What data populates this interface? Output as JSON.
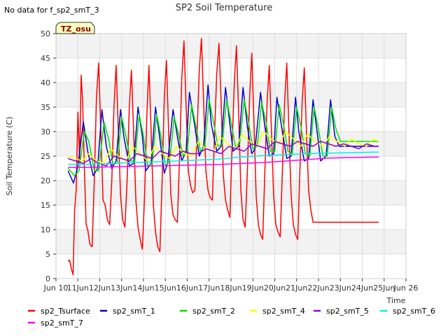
{
  "chart_data": {
    "type": "line",
    "title": "SP2 Soil Temperature",
    "top_left_note": "No data for f_sp2_smT_3",
    "badge": "TZ_osu",
    "xlabel": "Time",
    "ylabel": "Soil Temperature (C)",
    "xlim": [
      10.0,
      26.0
    ],
    "ylim": [
      0,
      50
    ],
    "x_ticks": [
      {
        "v": 10,
        "label": "Jun 10"
      },
      {
        "v": 11,
        "label": "11Jun"
      },
      {
        "v": 12,
        "label": "12Jun"
      },
      {
        "v": 13,
        "label": "13Jun"
      },
      {
        "v": 14,
        "label": "14Jun"
      },
      {
        "v": 15,
        "label": "15Jun"
      },
      {
        "v": 16,
        "label": "16Jun"
      },
      {
        "v": 17,
        "label": "17Jun"
      },
      {
        "v": 18,
        "label": "18Jun"
      },
      {
        "v": 19,
        "label": "19Jun"
      },
      {
        "v": 20,
        "label": "20Jun"
      },
      {
        "v": 21,
        "label": "21Jun"
      },
      {
        "v": 22,
        "label": "22Jun"
      },
      {
        "v": 23,
        "label": "23Jun"
      },
      {
        "v": 24,
        "label": "24Jun"
      },
      {
        "v": 25,
        "label": "25Jun"
      },
      {
        "v": 26,
        "label": "Jun 26"
      }
    ],
    "y_ticks": [
      0,
      5,
      10,
      15,
      20,
      25,
      30,
      35,
      40,
      45,
      50
    ],
    "grid": true,
    "banded_background": true,
    "legend_position": "bottom",
    "series": [
      {
        "name": "sp2_Tsurface",
        "color": "#ff0000",
        "width": 1.5,
        "x": [
          10.55,
          10.62,
          10.7,
          10.78,
          10.85,
          10.92,
          11.0,
          11.08,
          11.15,
          11.22,
          11.3,
          11.38,
          11.45,
          11.55,
          11.65,
          11.75,
          11.85,
          11.95,
          12.05,
          12.15,
          12.25,
          12.35,
          12.45,
          12.55,
          12.65,
          12.75,
          12.85,
          12.95,
          13.05,
          13.15,
          13.25,
          13.35,
          13.45,
          13.55,
          13.65,
          13.75,
          13.85,
          13.95,
          14.05,
          14.15,
          14.25,
          14.35,
          14.45,
          14.55,
          14.65,
          14.75,
          14.85,
          14.95,
          15.05,
          15.15,
          15.25,
          15.35,
          15.45,
          15.55,
          15.65,
          15.75,
          15.85,
          15.95,
          16.05,
          16.15,
          16.25,
          16.35,
          16.45,
          16.55,
          16.65,
          16.75,
          16.85,
          16.95,
          17.05,
          17.15,
          17.25,
          17.35,
          17.45,
          17.55,
          17.65,
          17.75,
          17.85,
          17.95,
          18.05,
          18.15,
          18.25,
          18.35,
          18.45,
          18.55,
          18.65,
          18.75,
          18.85,
          18.95,
          19.05,
          19.15,
          19.25,
          19.35,
          19.45,
          19.55,
          19.65,
          19.75,
          19.85,
          19.95,
          20.05,
          20.15,
          20.25,
          20.35,
          20.45,
          20.55,
          20.65,
          20.75,
          20.85,
          20.95,
          21.05,
          21.15,
          21.25,
          21.35,
          21.45,
          21.55,
          21.65,
          21.75,
          21.85,
          21.95,
          22.05,
          22.15,
          22.25,
          22.35,
          22.45,
          22.55,
          22.65,
          22.75,
          22.85,
          22.95,
          23.05,
          23.15,
          23.25,
          23.35,
          23.45,
          23.55,
          23.65,
          23.75,
          23.85,
          23.95,
          24.05,
          24.15,
          24.25,
          24.35,
          24.45,
          24.55,
          24.65,
          24.75
        ],
        "y": [
          3.5,
          3.8,
          2.0,
          0.8,
          14.0,
          18.0,
          34.0,
          24.0,
          41.5,
          36.0,
          22.0,
          11.0,
          10.0,
          7.0,
          6.5,
          20.0,
          37.0,
          44.0,
          30.0,
          16.0,
          15.0,
          12.0,
          11.0,
          20.0,
          35.0,
          43.5,
          30.0,
          17.0,
          12.0,
          10.5,
          20.0,
          35.0,
          42.5,
          30.0,
          16.0,
          10.5,
          8.0,
          6.0,
          17.0,
          33.0,
          43.5,
          30.0,
          15.0,
          9.5,
          6.5,
          5.5,
          20.0,
          37.0,
          44.5,
          30.0,
          17.0,
          13.0,
          12.0,
          11.5,
          25.0,
          41.0,
          48.5,
          35.0,
          22.0,
          19.0,
          17.5,
          18.0,
          30.0,
          42.5,
          49.0,
          36.0,
          22.0,
          18.0,
          16.5,
          16.0,
          30.0,
          42.0,
          48.0,
          36.0,
          21.0,
          16.0,
          14.0,
          12.5,
          27.0,
          40.0,
          47.5,
          34.0,
          18.0,
          12.0,
          10.5,
          22.0,
          37.0,
          46.0,
          32.0,
          17.0,
          11.0,
          9.0,
          8.0,
          22.0,
          36.0,
          43.5,
          30.0,
          17.0,
          11.0,
          9.5,
          8.5,
          22.0,
          36.0,
          44.0,
          30.0,
          17.0,
          11.0,
          9.0,
          8.0,
          22.0,
          36.0,
          43.0,
          30.0,
          18.0,
          14.0,
          11.5,
          11.5,
          11.5,
          11.5,
          11.5,
          11.5,
          11.5,
          11.5,
          11.5,
          11.5,
          11.5,
          11.5,
          11.5,
          11.5,
          11.5,
          11.5,
          11.5,
          11.5,
          11.5,
          11.5,
          11.5,
          11.5,
          11.5,
          11.5,
          11.5,
          11.5,
          11.5,
          11.5,
          11.5,
          11.5,
          11.5
        ]
      },
      {
        "name": "sp2_smT_1",
        "color": "#0000cc",
        "width": 1.5,
        "x": [
          10.55,
          10.8,
          11.0,
          11.25,
          11.45,
          11.7,
          11.9,
          12.1,
          12.3,
          12.55,
          12.75,
          12.95,
          13.1,
          13.35,
          13.55,
          13.75,
          13.95,
          14.1,
          14.35,
          14.55,
          14.75,
          14.95,
          15.1,
          15.35,
          15.55,
          15.75,
          15.95,
          16.1,
          16.35,
          16.55,
          16.75,
          16.95,
          17.1,
          17.35,
          17.55,
          17.75,
          17.95,
          18.1,
          18.35,
          18.55,
          18.75,
          18.95,
          19.1,
          19.35,
          19.55,
          19.75,
          19.95,
          20.1,
          20.35,
          20.55,
          20.75,
          20.95,
          21.1,
          21.35,
          21.55,
          21.75,
          21.95,
          22.1,
          22.35,
          22.55,
          22.75,
          22.95,
          23.1,
          23.35,
          23.55,
          23.75,
          23.95,
          24.1,
          24.35,
          24.55,
          24.75
        ],
        "y": [
          22.0,
          19.5,
          23.0,
          32.0,
          26.0,
          21.0,
          22.5,
          34.5,
          27.0,
          22.5,
          24.0,
          34.5,
          29.0,
          23.0,
          23.5,
          35.0,
          29.0,
          22.0,
          23.5,
          35.0,
          28.5,
          21.5,
          23.5,
          34.5,
          29.0,
          24.0,
          26.0,
          38.0,
          31.0,
          25.0,
          27.0,
          39.5,
          31.5,
          26.0,
          27.0,
          39.0,
          31.5,
          26.0,
          27.0,
          39.0,
          31.0,
          25.5,
          26.5,
          38.0,
          31.0,
          25.0,
          25.5,
          37.0,
          30.0,
          24.5,
          25.0,
          37.0,
          30.0,
          24.0,
          24.5,
          36.5,
          29.5,
          24.0,
          25.0,
          36.5,
          29.0,
          27.0,
          27.0,
          27.0,
          27.0,
          27.0,
          27.0,
          27.0,
          27.0,
          27.0,
          27.0
        ]
      },
      {
        "name": "sp2_smT_2",
        "color": "#00e000",
        "width": 1.5,
        "x": [
          10.55,
          10.85,
          11.05,
          11.3,
          11.5,
          11.75,
          11.95,
          12.2,
          12.4,
          12.6,
          12.8,
          13.0,
          13.2,
          13.4,
          13.6,
          13.8,
          14.0,
          14.2,
          14.4,
          14.6,
          14.8,
          15.0,
          15.2,
          15.4,
          15.6,
          15.8,
          16.0,
          16.2,
          16.4,
          16.6,
          16.8,
          17.0,
          17.2,
          17.4,
          17.6,
          17.8,
          18.0,
          18.2,
          18.4,
          18.6,
          18.8,
          19.0,
          19.2,
          19.4,
          19.6,
          19.8,
          20.0,
          20.2,
          20.4,
          20.6,
          20.8,
          21.0,
          21.2,
          21.4,
          21.6,
          21.8,
          22.0,
          22.2,
          22.4,
          22.6,
          22.8,
          23.0,
          23.2,
          23.4,
          23.6,
          23.8,
          24.0,
          24.2,
          24.4,
          24.6,
          24.75
        ],
        "y": [
          22.5,
          21.0,
          22.0,
          30.0,
          28.0,
          22.0,
          22.0,
          32.0,
          28.5,
          23.5,
          23.5,
          33.0,
          29.0,
          24.0,
          24.0,
          33.5,
          29.0,
          23.0,
          23.5,
          33.5,
          29.0,
          23.0,
          24.0,
          33.0,
          29.5,
          25.0,
          26.0,
          35.5,
          31.0,
          26.0,
          27.0,
          36.5,
          32.0,
          27.0,
          27.5,
          36.5,
          32.0,
          27.0,
          27.5,
          36.5,
          32.0,
          26.5,
          27.0,
          36.0,
          32.0,
          26.0,
          26.0,
          35.5,
          31.5,
          26.0,
          25.5,
          35.0,
          31.0,
          25.5,
          25.0,
          35.0,
          30.5,
          25.0,
          25.0,
          35.0,
          30.5,
          28.0,
          28.0,
          28.0,
          28.0,
          28.0,
          28.0,
          28.0,
          28.0,
          28.0,
          28.0
        ]
      },
      {
        "name": "sp2_smT_4",
        "color": "#ffff00",
        "width": 1.5,
        "x": [
          10.55,
          10.9,
          11.2,
          11.5,
          11.85,
          12.2,
          12.5,
          12.85,
          13.2,
          13.5,
          13.85,
          14.2,
          14.5,
          14.85,
          15.2,
          15.5,
          15.85,
          16.2,
          16.5,
          16.85,
          17.2,
          17.5,
          17.85,
          18.2,
          18.5,
          18.85,
          19.2,
          19.5,
          19.85,
          20.2,
          20.5,
          20.85,
          21.2,
          21.5,
          21.85,
          22.2,
          22.5,
          22.85,
          23.2,
          23.5,
          23.85,
          24.2,
          24.5,
          24.75
        ],
        "y": [
          25.0,
          24.5,
          24.0,
          25.5,
          24.0,
          23.5,
          26.5,
          25.0,
          24.0,
          27.0,
          25.5,
          24.0,
          27.0,
          25.5,
          24.5,
          27.0,
          25.5,
          25.0,
          28.0,
          26.5,
          26.0,
          29.0,
          27.5,
          26.5,
          29.5,
          28.0,
          27.0,
          30.0,
          28.5,
          27.5,
          30.0,
          28.5,
          27.0,
          29.5,
          28.0,
          27.0,
          29.0,
          28.0,
          27.0,
          28.5,
          27.5,
          27.0,
          28.5,
          28.0
        ]
      },
      {
        "name": "sp2_smT_5",
        "color": "#9400d3",
        "width": 1.5,
        "x": [
          10.55,
          10.9,
          11.25,
          11.6,
          11.95,
          12.3,
          12.65,
          13.0,
          13.35,
          13.7,
          14.05,
          14.4,
          14.75,
          15.1,
          15.45,
          15.8,
          16.15,
          16.5,
          16.85,
          17.2,
          17.55,
          17.9,
          18.25,
          18.6,
          18.95,
          19.3,
          19.65,
          20.0,
          20.35,
          20.7,
          21.05,
          21.4,
          21.75,
          22.1,
          22.45,
          22.8,
          23.15,
          23.5,
          23.85,
          24.2,
          24.55,
          24.75
        ],
        "y": [
          24.5,
          24.0,
          23.5,
          24.5,
          23.5,
          23.0,
          25.0,
          24.5,
          24.0,
          25.5,
          25.0,
          24.5,
          26.0,
          25.5,
          25.0,
          26.0,
          25.5,
          25.5,
          26.5,
          26.0,
          25.5,
          27.0,
          26.5,
          26.0,
          27.5,
          27.0,
          26.5,
          28.0,
          27.5,
          27.0,
          28.0,
          27.5,
          27.0,
          28.0,
          27.5,
          27.0,
          27.5,
          27.0,
          26.5,
          27.5,
          27.0,
          27.0
        ]
      },
      {
        "name": "sp2_smT_6",
        "color": "#00eeee",
        "width": 1.5,
        "x": [
          10.55,
          11.5,
          12.5,
          13.5,
          14.5,
          15.5,
          16.5,
          17.5,
          18.5,
          19.5,
          20.5,
          21.5,
          22.5,
          23.5,
          24.5,
          24.75
        ],
        "y": [
          23.3,
          23.3,
          23.5,
          23.7,
          23.8,
          24.0,
          24.2,
          24.4,
          24.8,
          25.1,
          25.3,
          25.5,
          25.6,
          25.7,
          25.8,
          25.8
        ]
      },
      {
        "name": "sp2_smT_7",
        "color": "#ff00ff",
        "width": 1.5,
        "x": [
          10.55,
          11.5,
          12.5,
          13.5,
          14.5,
          15.5,
          16.5,
          17.5,
          18.5,
          19.5,
          20.5,
          21.5,
          22.5,
          23.5,
          24.5,
          24.75
        ],
        "y": [
          22.7,
          22.7,
          22.8,
          22.9,
          23.0,
          23.1,
          23.2,
          23.3,
          23.5,
          23.7,
          24.0,
          24.3,
          24.6,
          24.7,
          24.8,
          24.8
        ]
      }
    ]
  }
}
